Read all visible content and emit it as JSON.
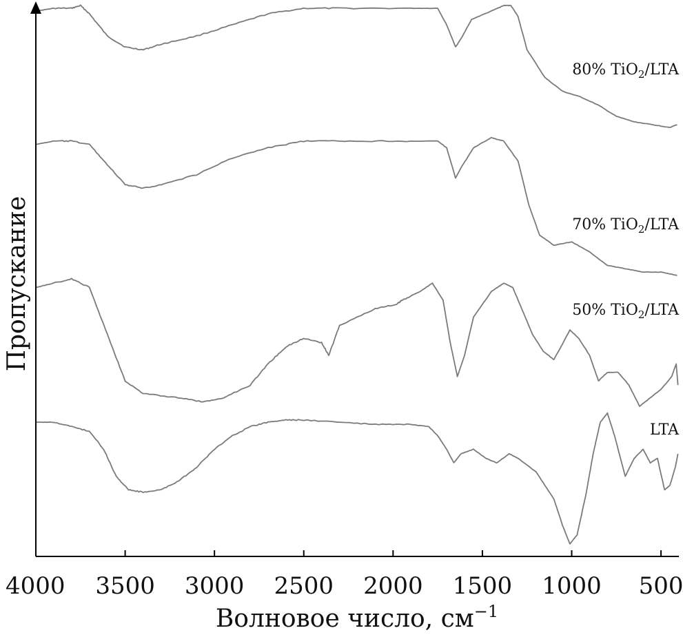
{
  "chart_data": {
    "type": "line",
    "xlabel": "Волновое число, см",
    "xlabel_sup": "−1",
    "ylabel": "Пропускание",
    "xlim": [
      4000,
      400
    ],
    "x_reversed": true,
    "y_ticks_shown": false,
    "grid": false,
    "x_ticks": [
      {
        "value": 4000,
        "label": "4000"
      },
      {
        "value": 3500,
        "label": "3500"
      },
      {
        "value": 3000,
        "label": "3000"
      },
      {
        "value": 2500,
        "label": "2500"
      },
      {
        "value": 2000,
        "label": "2000"
      },
      {
        "value": 1500,
        "label": "1500"
      },
      {
        "value": 1000,
        "label": "1000"
      },
      {
        "value": 500,
        "label": "500"
      }
    ],
    "series": [
      {
        "name": "80% TiO2/LTA",
        "label_parts": [
          "80% TiO",
          "2",
          "/LTA"
        ],
        "color": "#7a7a7a",
        "points": [
          [
            4000,
            97
          ],
          [
            3900,
            98
          ],
          [
            3800,
            98
          ],
          [
            3750,
            99
          ],
          [
            3700,
            96
          ],
          [
            3600,
            88
          ],
          [
            3500,
            84
          ],
          [
            3400,
            83
          ],
          [
            3300,
            85
          ],
          [
            3100,
            88
          ],
          [
            2900,
            92
          ],
          [
            2700,
            96
          ],
          [
            2500,
            98
          ],
          [
            2300,
            98
          ],
          [
            1900,
            98
          ],
          [
            1750,
            98
          ],
          [
            1700,
            92
          ],
          [
            1650,
            84
          ],
          [
            1620,
            87
          ],
          [
            1560,
            94
          ],
          [
            1450,
            97
          ],
          [
            1380,
            99
          ],
          [
            1340,
            99
          ],
          [
            1300,
            95
          ],
          [
            1250,
            83
          ],
          [
            1150,
            73
          ],
          [
            1050,
            68
          ],
          [
            950,
            66
          ],
          [
            850,
            63
          ],
          [
            750,
            59
          ],
          [
            650,
            57
          ],
          [
            550,
            56
          ],
          [
            450,
            55
          ],
          [
            410,
            56
          ]
        ]
      },
      {
        "name": "70% TiO2/LTA",
        "label_parts": [
          "70% TiO",
          "2",
          "/LTA"
        ],
        "color": "#7a7a7a",
        "points": [
          [
            4000,
            74
          ],
          [
            3900,
            75
          ],
          [
            3800,
            75
          ],
          [
            3700,
            74
          ],
          [
            3600,
            68
          ],
          [
            3500,
            62
          ],
          [
            3400,
            61
          ],
          [
            3300,
            62
          ],
          [
            3100,
            65
          ],
          [
            2900,
            70
          ],
          [
            2700,
            73
          ],
          [
            2500,
            75
          ],
          [
            2300,
            75
          ],
          [
            2000,
            75
          ],
          [
            1750,
            75
          ],
          [
            1700,
            73
          ],
          [
            1650,
            64
          ],
          [
            1620,
            67
          ],
          [
            1550,
            73
          ],
          [
            1450,
            76
          ],
          [
            1380,
            75
          ],
          [
            1300,
            69
          ],
          [
            1240,
            56
          ],
          [
            1180,
            47
          ],
          [
            1100,
            44
          ],
          [
            1000,
            45
          ],
          [
            900,
            42
          ],
          [
            800,
            38
          ],
          [
            700,
            37
          ],
          [
            600,
            36
          ],
          [
            500,
            36
          ],
          [
            410,
            35
          ]
        ]
      },
      {
        "name": "50% TiO2/LTA",
        "label_parts": [
          "50% TiO",
          "2",
          "/LTA"
        ],
        "color": "#7a7a7a",
        "points": [
          [
            4000,
            48
          ],
          [
            3900,
            49
          ],
          [
            3800,
            50
          ],
          [
            3700,
            48
          ],
          [
            3600,
            37
          ],
          [
            3500,
            26
          ],
          [
            3400,
            23
          ],
          [
            3200,
            22
          ],
          [
            3060,
            21
          ],
          [
            2950,
            22
          ],
          [
            2800,
            25
          ],
          [
            2700,
            30
          ],
          [
            2600,
            34
          ],
          [
            2500,
            36
          ],
          [
            2400,
            35
          ],
          [
            2360,
            32
          ],
          [
            2300,
            39
          ],
          [
            2100,
            43
          ],
          [
            1980,
            44
          ],
          [
            1950,
            45
          ],
          [
            1850,
            47
          ],
          [
            1780,
            49
          ],
          [
            1720,
            45
          ],
          [
            1680,
            35
          ],
          [
            1640,
            27
          ],
          [
            1600,
            32
          ],
          [
            1550,
            41
          ],
          [
            1450,
            47
          ],
          [
            1380,
            49
          ],
          [
            1330,
            48
          ],
          [
            1280,
            43
          ],
          [
            1220,
            37
          ],
          [
            1160,
            33
          ],
          [
            1100,
            31
          ],
          [
            1060,
            34
          ],
          [
            1010,
            38
          ],
          [
            960,
            36
          ],
          [
            900,
            32
          ],
          [
            850,
            26
          ],
          [
            800,
            28
          ],
          [
            740,
            28
          ],
          [
            680,
            25
          ],
          [
            620,
            20
          ],
          [
            560,
            22
          ],
          [
            500,
            24
          ],
          [
            440,
            27
          ],
          [
            415,
            30
          ],
          [
            405,
            25
          ]
        ]
      },
      {
        "name": "LTA",
        "label_parts": [
          "LTA"
        ],
        "color": "#7a7a7a",
        "points": [
          [
            4000,
            20
          ],
          [
            3900,
            20
          ],
          [
            3800,
            19
          ],
          [
            3700,
            18
          ],
          [
            3620,
            14
          ],
          [
            3550,
            8
          ],
          [
            3480,
            5
          ],
          [
            3400,
            4.5
          ],
          [
            3300,
            5
          ],
          [
            3200,
            7
          ],
          [
            3100,
            10
          ],
          [
            3000,
            14
          ],
          [
            2900,
            17
          ],
          [
            2800,
            19
          ],
          [
            2700,
            20
          ],
          [
            2600,
            20.5
          ],
          [
            2500,
            20.5
          ],
          [
            2300,
            20
          ],
          [
            2100,
            19.5
          ],
          [
            1900,
            19.5
          ],
          [
            1800,
            19
          ],
          [
            1750,
            17
          ],
          [
            1700,
            14
          ],
          [
            1660,
            11
          ],
          [
            1620,
            13
          ],
          [
            1550,
            14
          ],
          [
            1480,
            12
          ],
          [
            1420,
            11
          ],
          [
            1350,
            13
          ],
          [
            1300,
            12
          ],
          [
            1200,
            9
          ],
          [
            1100,
            3
          ],
          [
            1050,
            -3
          ],
          [
            1010,
            -7
          ],
          [
            970,
            -5
          ],
          [
            920,
            4
          ],
          [
            880,
            13
          ],
          [
            840,
            20
          ],
          [
            800,
            22
          ],
          [
            760,
            17
          ],
          [
            700,
            8
          ],
          [
            650,
            12
          ],
          [
            600,
            14
          ],
          [
            560,
            11
          ],
          [
            520,
            12
          ],
          [
            480,
            5
          ],
          [
            450,
            6
          ],
          [
            420,
            10
          ],
          [
            405,
            13
          ]
        ]
      }
    ]
  }
}
